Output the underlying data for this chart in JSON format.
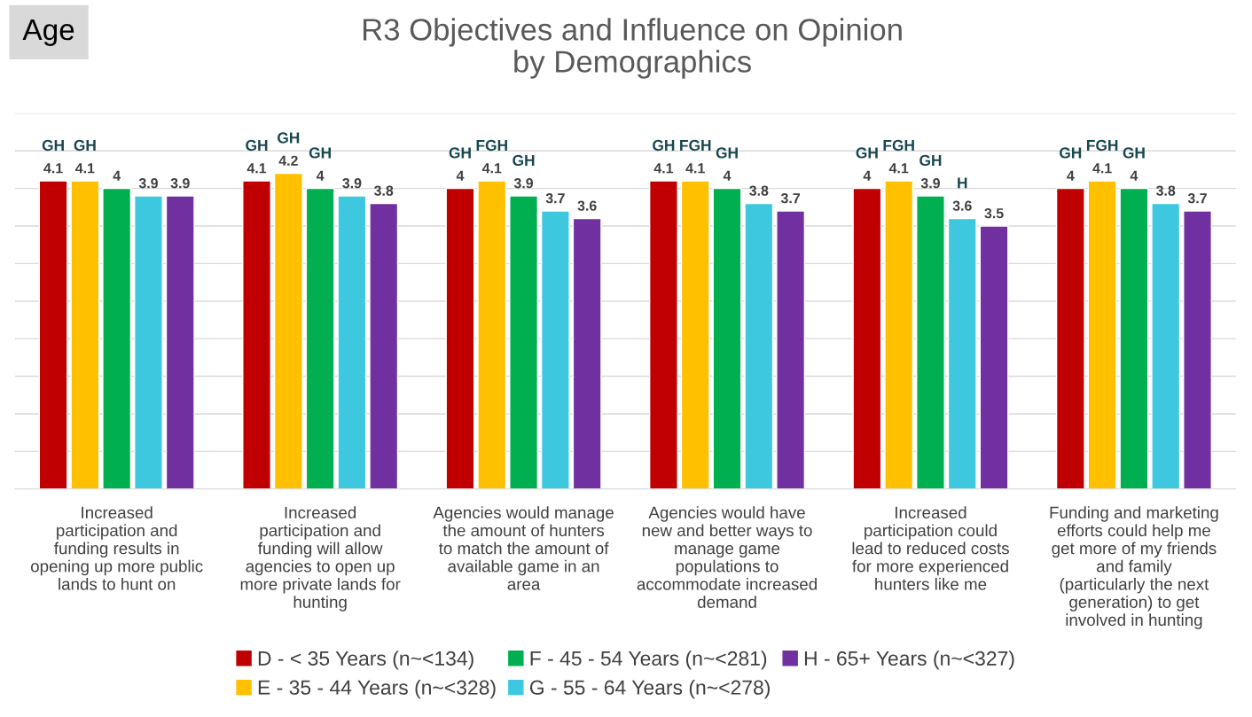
{
  "chart_data": {
    "type": "bar",
    "title": "R3 Objectives and Influence on Opinion\nby Demographics",
    "categories": [
      "Increased participation and funding results in opening up more public lands to hunt on",
      "Increased participation and funding will allow agencies to open up more private lands for hunting",
      "Agencies would manage the amount of hunters to match the amount of available game in an area",
      "Agencies would have new and better ways to manage game populations to accommodate increased demand",
      "Increased participation could lead to reduced costs for more experienced hunters like me",
      "Funding and marketing efforts could help me get more of my friends and family (particularly the next generation) to get involved in hunting"
    ],
    "series": [
      {
        "name": "D - < 35 Years (n~<134)",
        "color": "#c00000",
        "values": [
          4.1,
          4.1,
          4,
          4.1,
          4,
          4
        ],
        "value_labels": [
          "GH\n4.1",
          "GH\n4.1",
          "GH\n4",
          "GH\n4.1",
          "GH\n4",
          "GH\n4"
        ]
      },
      {
        "name": "E - 35 - 44 Years (n~<328)",
        "color": "#ffc000",
        "values": [
          4.1,
          4.2,
          4.1,
          4.1,
          4.1,
          4.1
        ],
        "value_labels": [
          "GH\n4.1",
          "GH\n4.2",
          "FGH\n4.1",
          "FGH\n4.1",
          "FGH\n4.1",
          "FGH\n4.1"
        ]
      },
      {
        "name": "F - 45 - 54 Years (n~<281)",
        "color": "#00b050",
        "values": [
          4,
          4,
          3.9,
          4,
          3.9,
          4
        ],
        "value_labels": [
          "4",
          "GH\n4",
          "GH\n3.9",
          "GH\n4",
          "GH\n3.9",
          "GH\n4"
        ]
      },
      {
        "name": "G - 55 - 64 Years (n~<278)",
        "color": "#3ec8e0",
        "values": [
          3.9,
          3.9,
          3.7,
          3.8,
          3.6,
          3.8
        ],
        "value_labels": [
          "3.9",
          "3.9",
          "3.7",
          "3.8",
          "H\n3.6",
          "3.8"
        ]
      },
      {
        "name": "H - 65+ Years (n~<327)",
        "color": "#7030a0",
        "values": [
          3.9,
          3.8,
          3.6,
          3.7,
          3.5,
          3.7
        ],
        "value_labels": [
          "3.9",
          "3.8",
          "3.6",
          "3.7",
          "3.5",
          "3.7"
        ]
      }
    ],
    "ylim": [
      0,
      5
    ],
    "yticks": [
      {
        "value": 0,
        "label": null
      },
      {
        "value": 0.5,
        "label": null
      },
      {
        "value": 1,
        "label": null
      },
      {
        "value": 1.5,
        "label": null
      },
      {
        "value": 2,
        "label": null
      },
      {
        "value": 2.5,
        "label": null
      },
      {
        "value": 3,
        "label": null
      },
      {
        "value": 3.5,
        "label": null
      },
      {
        "value": 4,
        "label": null
      },
      {
        "value": 4.5,
        "label": null
      },
      {
        "value": 5,
        "label": null
      }
    ],
    "tick_labels": "x",
    "grid": "y",
    "legend": "bottom",
    "annotations": [
      "Age"
    ]
  }
}
